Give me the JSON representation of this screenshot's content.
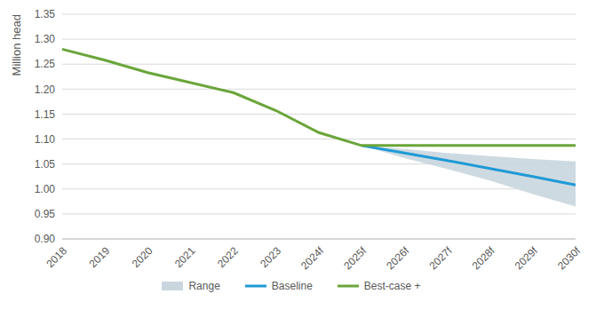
{
  "chart_data": {
    "type": "line",
    "y_label": "Million head",
    "categories": [
      "2018",
      "2019",
      "2020",
      "2021",
      "2022",
      "2023",
      "2024f",
      "2025f",
      "2026f",
      "2027f",
      "2028f",
      "2029f",
      "2030f"
    ],
    "ylim": [
      0.9,
      1.35
    ],
    "yticks": [
      {
        "value": 0.9,
        "label": "0.90"
      },
      0.95,
      {
        "value": 1.0,
        "label": "1.00"
      },
      1.05,
      {
        "value": 1.1,
        "label": "1.10"
      },
      1.15,
      {
        "value": 1.2,
        "label": "1.20"
      },
      1.25,
      {
        "value": 1.3,
        "label": "1.30"
      },
      1.35
    ],
    "grid": true,
    "legend": "bottom",
    "series": [
      {
        "name": "Range",
        "type": "area",
        "color": "#c9d6de",
        "lower": [
          null,
          null,
          null,
          null,
          null,
          null,
          null,
          1.087,
          1.062,
          1.04,
          1.017,
          0.99,
          0.965
        ],
        "upper": [
          null,
          null,
          null,
          null,
          null,
          null,
          null,
          1.087,
          1.08,
          1.072,
          1.066,
          1.06,
          1.055
        ]
      },
      {
        "name": "Baseline",
        "type": "line",
        "color": "#1f9ad6",
        "values": [
          null,
          null,
          null,
          null,
          null,
          null,
          null,
          1.087,
          1.072,
          1.057,
          1.041,
          1.025,
          1.008
        ]
      },
      {
        "name": "Best-case +",
        "type": "line",
        "color": "#6aa53a",
        "values": [
          1.28,
          1.258,
          1.233,
          1.213,
          1.193,
          1.157,
          1.113,
          1.087,
          1.087,
          1.087,
          1.087,
          1.087,
          1.087
        ]
      }
    ]
  }
}
